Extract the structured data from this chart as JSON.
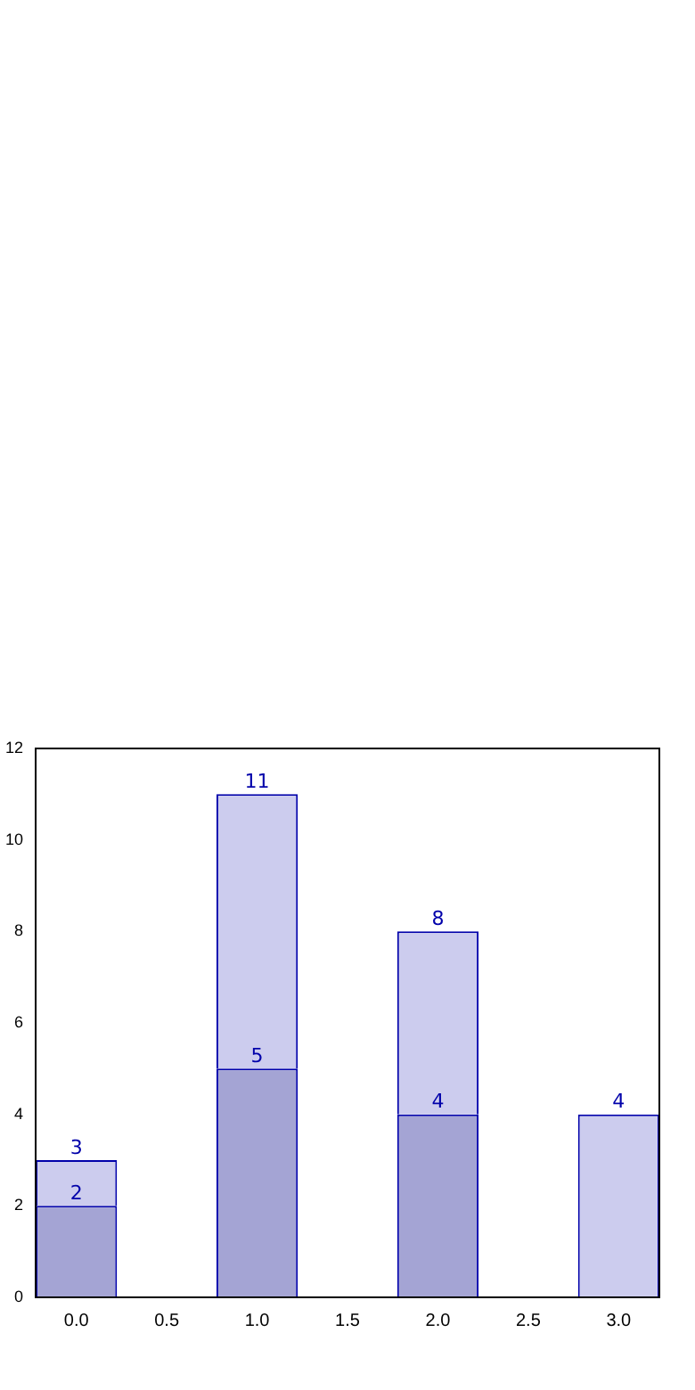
{
  "chart_data": {
    "type": "bar",
    "x": [
      0,
      1,
      2,
      3
    ],
    "stacked": true,
    "series": [
      {
        "color": "#a4a4d4",
        "values": [
          2,
          5,
          4,
          null
        ],
        "value_labels": [
          "2",
          "5",
          "4",
          null
        ]
      },
      {
        "color": "#ccccee",
        "values": [
          1,
          6,
          4,
          4
        ]
      }
    ],
    "totals": [
      "3",
      "11",
      "8",
      "4"
    ],
    "xlim": [
      -0.225,
      3.225
    ],
    "xticks": [
      {
        "value": 0,
        "label": "0.0"
      },
      {
        "value": 0.5,
        "label": "0.5"
      },
      {
        "value": 1,
        "label": "1.0"
      },
      {
        "value": 1.5,
        "label": "1.5"
      },
      {
        "value": 2,
        "label": "2.0"
      },
      {
        "value": 2.5,
        "label": "2.5"
      },
      {
        "value": 3,
        "label": "3.0"
      }
    ],
    "ylim": [
      0,
      12
    ],
    "yticks": [
      0,
      2,
      4,
      6,
      8,
      10,
      12
    ],
    "grid": false,
    "legend": false
  }
}
